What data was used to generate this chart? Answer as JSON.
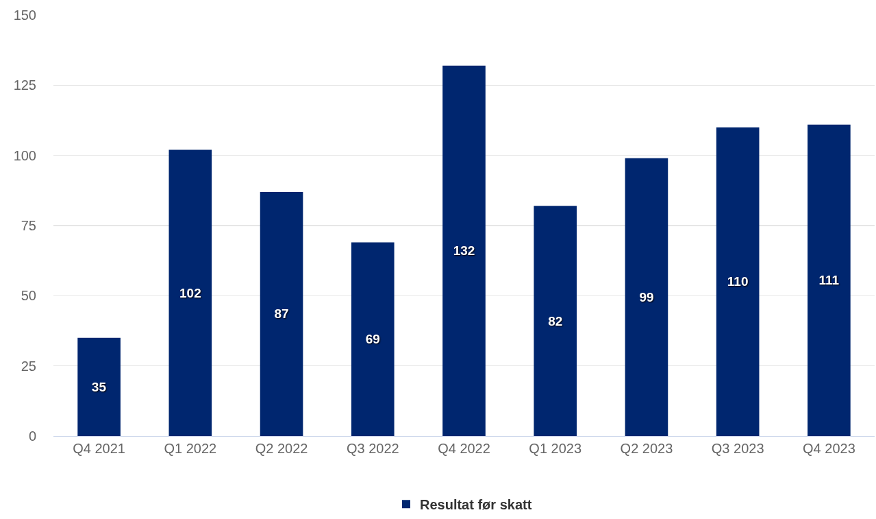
{
  "chart_data": {
    "type": "bar",
    "categories": [
      "Q4 2021",
      "Q1 2022",
      "Q2 2022",
      "Q3 2022",
      "Q4 2022",
      "Q1 2023",
      "Q2 2023",
      "Q3 2023",
      "Q4 2023"
    ],
    "series": [
      {
        "name": "Resultat før skatt",
        "color": "#00266f",
        "values": [
          35,
          102,
          87,
          69,
          132,
          82,
          99,
          110,
          111
        ]
      }
    ],
    "ylim": [
      0,
      150
    ],
    "yticks": [
      0,
      25,
      50,
      75,
      100,
      125,
      150
    ],
    "grid": "y",
    "legend": "bottom",
    "data_labels": true
  }
}
